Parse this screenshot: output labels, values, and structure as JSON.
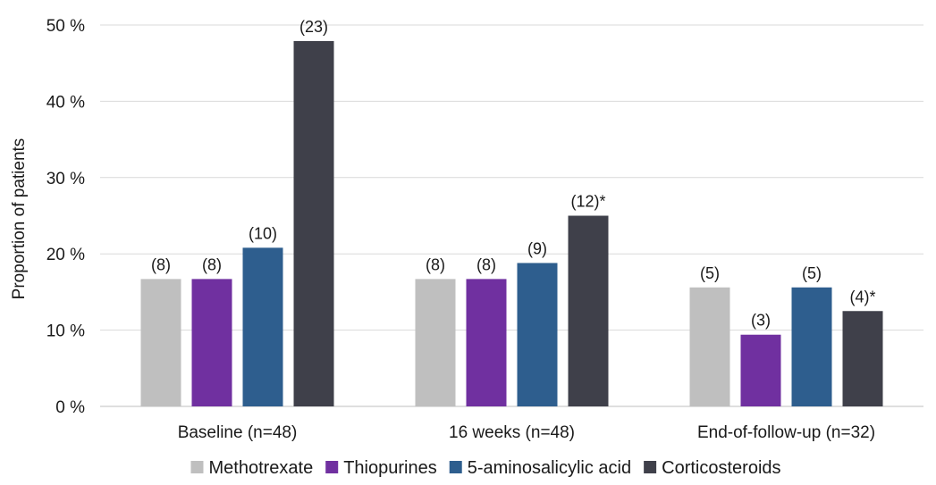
{
  "chart_data": {
    "type": "bar",
    "title": "",
    "xlabel": "",
    "ylabel": "Proportion of patients",
    "ylim": [
      0,
      50
    ],
    "yticks": [
      "0 %",
      "10 %",
      "20 %",
      "30 %",
      "40 %",
      "50 %"
    ],
    "ytick_values": [
      0,
      10,
      20,
      30,
      40,
      50
    ],
    "grid": true,
    "legend_position": "bottom",
    "categories": [
      "Baseline (n=48)",
      "16 weeks (n=48)",
      "End-of-follow-up (n=32)"
    ],
    "series": [
      {
        "name": "Methotrexate",
        "color": "#bfbfbf",
        "values": [
          16.7,
          16.7,
          15.6
        ],
        "labels": [
          "(8)",
          "(8)",
          "(5)"
        ]
      },
      {
        "name": "Thiopurines",
        "color": "#7030a0",
        "values": [
          16.7,
          16.7,
          9.4
        ],
        "labels": [
          "(8)",
          "(8)",
          "(3)"
        ]
      },
      {
        "name": "5-aminosalicylic acid",
        "color": "#2e5e8e",
        "values": [
          20.8,
          18.8,
          15.6
        ],
        "labels": [
          "(10)",
          "(9)",
          "(5)"
        ]
      },
      {
        "name": "Corticosteroids",
        "color": "#3f404a",
        "values": [
          47.9,
          25.0,
          12.5
        ],
        "labels": [
          "(23)",
          "(12)*",
          "(4)*"
        ]
      }
    ]
  }
}
